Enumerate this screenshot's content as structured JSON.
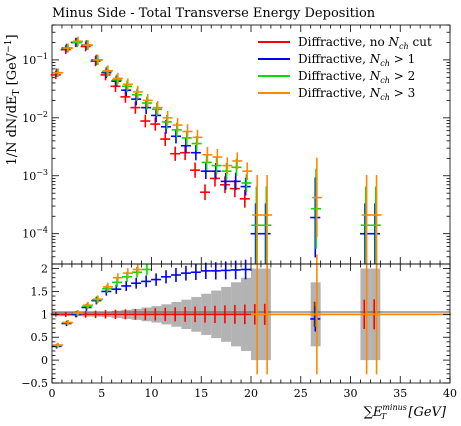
{
  "chart_data": [
    {
      "type": "scatter",
      "title": "Minus Side - Total Transverse Energy Deposition",
      "ylabel": "1/N dN/dE_T [GeV^-1]",
      "ylabel_parts": {
        "main": "1/N dN/dE",
        "sub": "T",
        "unit": "[GeV",
        "sup": "−1",
        "close": "]"
      },
      "yscale": "log",
      "ylim": [
        3e-05,
        0.4
      ],
      "xlim": [
        0,
        40
      ],
      "yticks": [
        {
          "value": 0.1,
          "base": "10",
          "exp": "−1"
        },
        {
          "value": 0.01,
          "base": "10",
          "exp": "−2"
        },
        {
          "value": 0.001,
          "base": "10",
          "exp": "−3"
        },
        {
          "value": 0.0001,
          "base": "10",
          "exp": "−4"
        }
      ],
      "legend_position": "top-right",
      "series": [
        {
          "name": "Diffractive, no N_ch cut",
          "label_parts": {
            "main": "Diffractive, no ",
            "var": "N",
            "sub": "ch",
            "tail": " cut"
          },
          "color": "#ff0000",
          "points": [
            [
              0.5,
              0.055
            ],
            [
              1.5,
              0.15
            ],
            [
              2.5,
              0.2
            ],
            [
              3.5,
              0.17
            ],
            [
              4.5,
              0.095
            ],
            [
              5.5,
              0.055
            ],
            [
              6.5,
              0.035
            ],
            [
              7.5,
              0.023
            ],
            [
              8.5,
              0.015
            ],
            [
              9.5,
              0.0088
            ],
            [
              10.5,
              0.0078
            ],
            [
              11.5,
              0.0043
            ],
            [
              12.5,
              0.0024
            ],
            [
              13.5,
              0.0025
            ],
            [
              14.5,
              0.00125
            ],
            [
              15.5,
              0.00052
            ],
            [
              16.5,
              0.0009
            ],
            [
              17.5,
              0.0007
            ],
            [
              18.5,
              0.0006
            ],
            [
              19.5,
              0.0004
            ]
          ]
        },
        {
          "name": "Diffractive, N_ch > 1",
          "label_parts": {
            "main": "Diffractive, ",
            "var": "N",
            "sub": "ch",
            "tail": " > 1"
          },
          "color": "#0000ff",
          "points": [
            [
              0.5,
              0.06
            ],
            [
              1.5,
              0.16
            ],
            [
              2.5,
              0.2
            ],
            [
              3.5,
              0.18
            ],
            [
              4.5,
              0.1
            ],
            [
              5.5,
              0.06
            ],
            [
              6.5,
              0.043
            ],
            [
              7.5,
              0.03
            ],
            [
              8.5,
              0.021
            ],
            [
              9.5,
              0.015
            ],
            [
              10.5,
              0.011
            ],
            [
              11.5,
              0.007
            ],
            [
              12.5,
              0.0048
            ],
            [
              13.5,
              0.0033
            ],
            [
              14.5,
              0.0025
            ],
            [
              15.5,
              0.0012
            ],
            [
              16.5,
              0.0012
            ],
            [
              17.5,
              0.0008
            ],
            [
              18.5,
              0.0008
            ],
            [
              19.5,
              0.00065
            ],
            [
              20.5,
              0.0001
            ],
            [
              21.5,
              0.0001
            ],
            [
              26.5,
              0.00019
            ],
            [
              31.5,
              0.0001
            ],
            [
              32.5,
              0.0001
            ]
          ]
        },
        {
          "name": "Diffractive, N_ch > 2",
          "label_parts": {
            "main": "Diffractive, ",
            "var": "N",
            "sub": "ch",
            "tail": " > 2"
          },
          "color": "#00dd00",
          "points": [
            [
              0.5,
              0.06
            ],
            [
              1.5,
              0.16
            ],
            [
              2.5,
              0.2
            ],
            [
              3.5,
              0.18
            ],
            [
              4.5,
              0.1
            ],
            [
              5.5,
              0.063
            ],
            [
              6.5,
              0.045
            ],
            [
              7.5,
              0.035
            ],
            [
              8.5,
              0.025
            ],
            [
              9.5,
              0.018
            ],
            [
              10.5,
              0.014
            ],
            [
              11.5,
              0.0085
            ],
            [
              12.5,
              0.0062
            ],
            [
              13.5,
              0.0045
            ],
            [
              14.5,
              0.0036
            ],
            [
              15.5,
              0.0017
            ],
            [
              16.5,
              0.0015
            ],
            [
              17.5,
              0.0012
            ],
            [
              18.5,
              0.0014
            ],
            [
              19.5,
              0.00075
            ],
            [
              20.5,
              0.00014
            ],
            [
              21.5,
              0.00014
            ],
            [
              26.5,
              0.00027
            ],
            [
              31.5,
              0.00014
            ],
            [
              32.5,
              0.00014
            ]
          ]
        },
        {
          "name": "Diffractive, N_ch > 3",
          "label_parts": {
            "main": "Diffractive, ",
            "var": "N",
            "sub": "ch",
            "tail": " > 3"
          },
          "color": "#ff8800",
          "points": [
            [
              0.5,
              0.06
            ],
            [
              1.5,
              0.16
            ],
            [
              2.5,
              0.21
            ],
            [
              3.5,
              0.18
            ],
            [
              4.5,
              0.1
            ],
            [
              5.5,
              0.065
            ],
            [
              6.5,
              0.048
            ],
            [
              7.5,
              0.038
            ],
            [
              8.5,
              0.028
            ],
            [
              9.5,
              0.02
            ],
            [
              10.5,
              0.015
            ],
            [
              11.5,
              0.01
            ],
            [
              12.5,
              0.0075
            ],
            [
              13.5,
              0.0058
            ],
            [
              14.5,
              0.0046
            ],
            [
              15.5,
              0.0023
            ],
            [
              16.5,
              0.0021
            ],
            [
              17.5,
              0.0015
            ],
            [
              18.5,
              0.0018
            ],
            [
              19.5,
              0.0012
            ],
            [
              20.5,
              0.00021
            ],
            [
              21.5,
              0.00021
            ],
            [
              26.5,
              0.00042
            ],
            [
              31.5,
              0.00021
            ],
            [
              32.5,
              0.00021
            ]
          ]
        }
      ]
    },
    {
      "type": "scatter",
      "title": "",
      "xlabel": "∑E_T^minus [GeV]",
      "xlabel_parts": {
        "sum": "∑",
        "main": "E",
        "sub": "T",
        "sup": "minus",
        "unit": " [GeV]"
      },
      "ylabel": "",
      "xlim": [
        0,
        40
      ],
      "ylim": [
        -0.5,
        2.1
      ],
      "xticks": [
        0,
        5,
        10,
        15,
        20,
        25,
        30,
        35,
        40
      ],
      "yticks": [
        -0.5,
        0,
        0.5,
        1,
        1.5,
        2
      ],
      "ytick_labels": [
        "−0.5",
        "0",
        "0.5",
        "1",
        "1.5",
        "2"
      ],
      "reference_line": 1,
      "band_color": "#b3b3b3",
      "band": [
        [
          0,
          0.04
        ],
        [
          1,
          0.04
        ],
        [
          2,
          0.04
        ],
        [
          3,
          0.05
        ],
        [
          4,
          0.05
        ],
        [
          5,
          0.06
        ],
        [
          6,
          0.08
        ],
        [
          7,
          0.1
        ],
        [
          8,
          0.12
        ],
        [
          9,
          0.15
        ],
        [
          10,
          0.18
        ],
        [
          11,
          0.22
        ],
        [
          12,
          0.27
        ],
        [
          13,
          0.32
        ],
        [
          14,
          0.38
        ],
        [
          15,
          0.45
        ],
        [
          16,
          0.52
        ],
        [
          17,
          0.6
        ],
        [
          18,
          0.7
        ],
        [
          19,
          0.8
        ],
        [
          20,
          1.0
        ],
        [
          21,
          1.0
        ],
        [
          26,
          0.7
        ],
        [
          31,
          1.0
        ],
        [
          32,
          1.0
        ]
      ],
      "series": [
        {
          "name": "Diffractive, no N_ch cut",
          "color": "#ff0000",
          "points": [
            [
              0.5,
              1
            ],
            [
              1.5,
              1
            ],
            [
              2.5,
              1
            ],
            [
              3.5,
              1
            ],
            [
              4.5,
              1
            ],
            [
              5.5,
              1
            ],
            [
              6.5,
              1
            ],
            [
              7.5,
              1
            ],
            [
              8.5,
              1
            ],
            [
              9.5,
              1
            ],
            [
              10.5,
              1
            ],
            [
              11.5,
              1
            ],
            [
              12.5,
              1
            ],
            [
              13.5,
              1
            ],
            [
              14.5,
              1
            ],
            [
              15.5,
              1
            ],
            [
              16.5,
              1
            ],
            [
              17.5,
              1
            ],
            [
              18.5,
              1
            ],
            [
              19.5,
              1
            ],
            [
              20.5,
              1
            ],
            [
              21.5,
              1
            ],
            [
              26.5,
              1
            ],
            [
              31.5,
              1
            ],
            [
              32.5,
              1
            ]
          ]
        },
        {
          "name": "Diffractive, N_ch > 1",
          "color": "#0000ff",
          "points": [
            [
              0.5,
              0.3
            ],
            [
              1.5,
              0.8
            ],
            [
              2.5,
              1.0
            ],
            [
              3.5,
              1.15
            ],
            [
              4.5,
              1.3
            ],
            [
              5.5,
              1.5
            ],
            [
              6.5,
              1.55
            ],
            [
              7.5,
              1.62
            ],
            [
              8.5,
              1.68
            ],
            [
              9.5,
              1.72
            ],
            [
              10.5,
              1.76
            ],
            [
              11.5,
              1.82
            ],
            [
              12.5,
              1.86
            ],
            [
              13.5,
              1.9
            ],
            [
              14.5,
              1.92
            ],
            [
              15.5,
              1.95
            ],
            [
              16.5,
              1.95
            ],
            [
              17.5,
              1.96
            ],
            [
              18.5,
              1.97
            ],
            [
              19.5,
              1.98
            ],
            [
              26.5,
              0.9
            ]
          ]
        },
        {
          "name": "Diffractive, N_ch > 2",
          "color": "#00dd00",
          "points": [
            [
              0.5,
              0.32
            ],
            [
              1.5,
              0.82
            ],
            [
              2.5,
              1.02
            ],
            [
              3.5,
              1.18
            ],
            [
              4.5,
              1.32
            ],
            [
              5.5,
              1.56
            ],
            [
              6.5,
              1.7
            ],
            [
              7.5,
              1.82
            ],
            [
              8.5,
              1.92
            ],
            [
              9.5,
              1.98
            ],
            [
              26.5,
              1.0
            ]
          ]
        },
        {
          "name": "Diffractive, N_ch > 3",
          "color": "#ff8800",
          "points": [
            [
              0.5,
              0.33
            ],
            [
              1.5,
              0.82
            ],
            [
              2.5,
              1.03
            ],
            [
              3.5,
              1.2
            ],
            [
              4.5,
              1.33
            ],
            [
              5.5,
              1.6
            ],
            [
              6.5,
              1.8
            ],
            [
              7.5,
              1.9
            ],
            [
              8.5,
              1.98
            ],
            [
              20.5,
              1
            ],
            [
              21.5,
              1
            ],
            [
              22.5,
              1
            ],
            [
              23.5,
              1
            ],
            [
              24.5,
              1
            ],
            [
              25.5,
              1
            ],
            [
              26.5,
              1
            ],
            [
              27.5,
              1
            ],
            [
              28.5,
              1
            ],
            [
              29.5,
              1
            ],
            [
              30.5,
              1
            ],
            [
              31.5,
              1
            ],
            [
              32.5,
              1
            ],
            [
              33.5,
              1
            ],
            [
              34.5,
              1
            ],
            [
              35.5,
              1
            ],
            [
              36.5,
              1
            ],
            [
              37.5,
              1
            ],
            [
              38.5,
              1
            ],
            [
              39.5,
              1
            ]
          ]
        }
      ]
    }
  ]
}
